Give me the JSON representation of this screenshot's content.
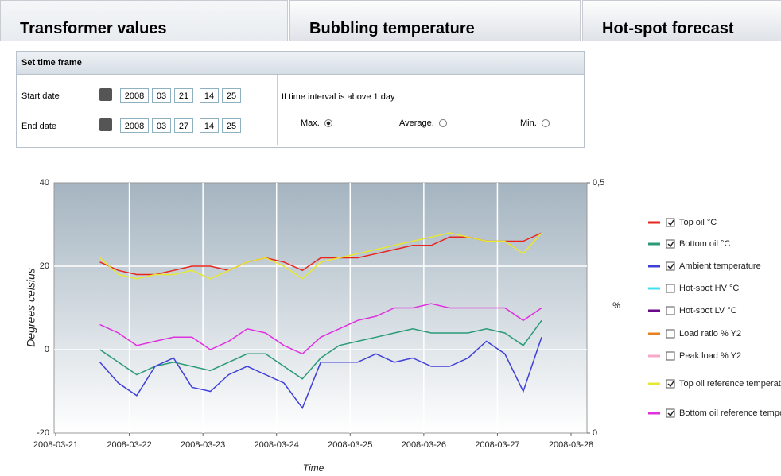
{
  "tabs": [
    {
      "label": "Transformer values",
      "active": true
    },
    {
      "label": "Bubbling temperature",
      "active": false
    },
    {
      "label": "Hot-spot forecast",
      "active": false
    }
  ],
  "form": {
    "title": "Set time frame",
    "rows": [
      {
        "label": "Start date",
        "year": "2008",
        "month": "03",
        "day": "21",
        "hour": "14",
        "minute": "25"
      },
      {
        "label": "End date",
        "year": "2008",
        "month": "03",
        "day": "27",
        "hour": "14",
        "minute": "25"
      }
    ],
    "interval_note": "If time interval is above 1 day",
    "options": [
      {
        "label": "Max.",
        "selected": true
      },
      {
        "label": "Average.",
        "selected": false
      },
      {
        "label": "Min.",
        "selected": false
      }
    ]
  },
  "chart_data": {
    "type": "line",
    "y_label": "Degrees celsius",
    "y2_label": "%",
    "x_label": "Time",
    "xlim": [
      "2008-03-21",
      "2008-03-28"
    ],
    "xticks": [
      "2008-03-21",
      "2008-03-22",
      "2008-03-23",
      "2008-03-24",
      "2008-03-25",
      "2008-03-26",
      "2008-03-27",
      "2008-03-28"
    ],
    "ylim": [
      -20,
      40
    ],
    "yticks": [
      -20,
      0,
      20,
      40
    ],
    "y2lim": [
      0,
      0.5
    ],
    "y2ticks": [
      0,
      {
        "value": 0.5,
        "label": "0,5"
      }
    ],
    "grid": true,
    "x": [
      "2008-03-21T14:25",
      "2008-03-21T20:25",
      "2008-03-22T02:25",
      "2008-03-22T08:25",
      "2008-03-22T14:25",
      "2008-03-22T20:25",
      "2008-03-23T02:25",
      "2008-03-23T08:25",
      "2008-03-23T14:25",
      "2008-03-23T20:25",
      "2008-03-24T02:25",
      "2008-03-24T08:25",
      "2008-03-24T14:25",
      "2008-03-24T20:25",
      "2008-03-25T02:25",
      "2008-03-25T08:25",
      "2008-03-25T14:25",
      "2008-03-25T20:25",
      "2008-03-26T02:25",
      "2008-03-26T08:25",
      "2008-03-26T14:25",
      "2008-03-26T20:25",
      "2008-03-27T02:25",
      "2008-03-27T08:25",
      "2008-03-27T14:25"
    ],
    "series": [
      {
        "name": "Top oil °C",
        "color": "#e8251c",
        "checked": true,
        "values": [
          21,
          19,
          18,
          18,
          19,
          20,
          20,
          19,
          21,
          22,
          21,
          19,
          22,
          22,
          22,
          23,
          24,
          25,
          25,
          27,
          27,
          26,
          26,
          26,
          28
        ]
      },
      {
        "name": "Bottom oil °C",
        "color": "#2a9a78",
        "checked": true,
        "values": [
          0,
          -3,
          -6,
          -4,
          -3,
          -4,
          -5,
          -3,
          -1,
          -1,
          -4,
          -7,
          -2,
          1,
          2,
          3,
          4,
          5,
          4,
          4,
          4,
          5,
          4,
          1,
          7
        ]
      },
      {
        "name": "Ambient temperature",
        "color": "#4040d8",
        "checked": true,
        "values": [
          -3,
          -8,
          -11,
          -4,
          -2,
          -9,
          -10,
          -6,
          -4,
          -6,
          -8,
          -14,
          -3,
          -3,
          -3,
          -1,
          -3,
          -2,
          -4,
          -4,
          -2,
          2,
          -1,
          -10,
          3
        ]
      },
      {
        "name": "Hot-spot HV °C",
        "color": "#40e0f0",
        "checked": false
      },
      {
        "name": "Hot-spot LV °C",
        "color": "#6a0a8a",
        "checked": false
      },
      {
        "name": "Load ratio % Y2",
        "color": "#e88020",
        "checked": false
      },
      {
        "name": "Peak load % Y2",
        "color": "#f8a8c8",
        "checked": false
      },
      {
        "name": "Top oil reference temperature °C",
        "color": "#e8e830",
        "checked": true,
        "values": [
          22,
          18,
          17,
          18,
          18,
          19,
          17,
          19,
          21,
          22,
          20,
          17,
          21,
          22,
          23,
          24,
          25,
          26,
          27,
          28,
          27,
          26,
          26,
          23,
          28
        ]
      },
      {
        "name": "Bottom oil reference temperature °C",
        "color": "#e030e0",
        "checked": true,
        "values": [
          6,
          4,
          1,
          2,
          3,
          3,
          0,
          2,
          5,
          4,
          1,
          -1,
          3,
          5,
          7,
          8,
          10,
          10,
          11,
          10,
          10,
          10,
          10,
          7,
          10
        ]
      }
    ]
  }
}
